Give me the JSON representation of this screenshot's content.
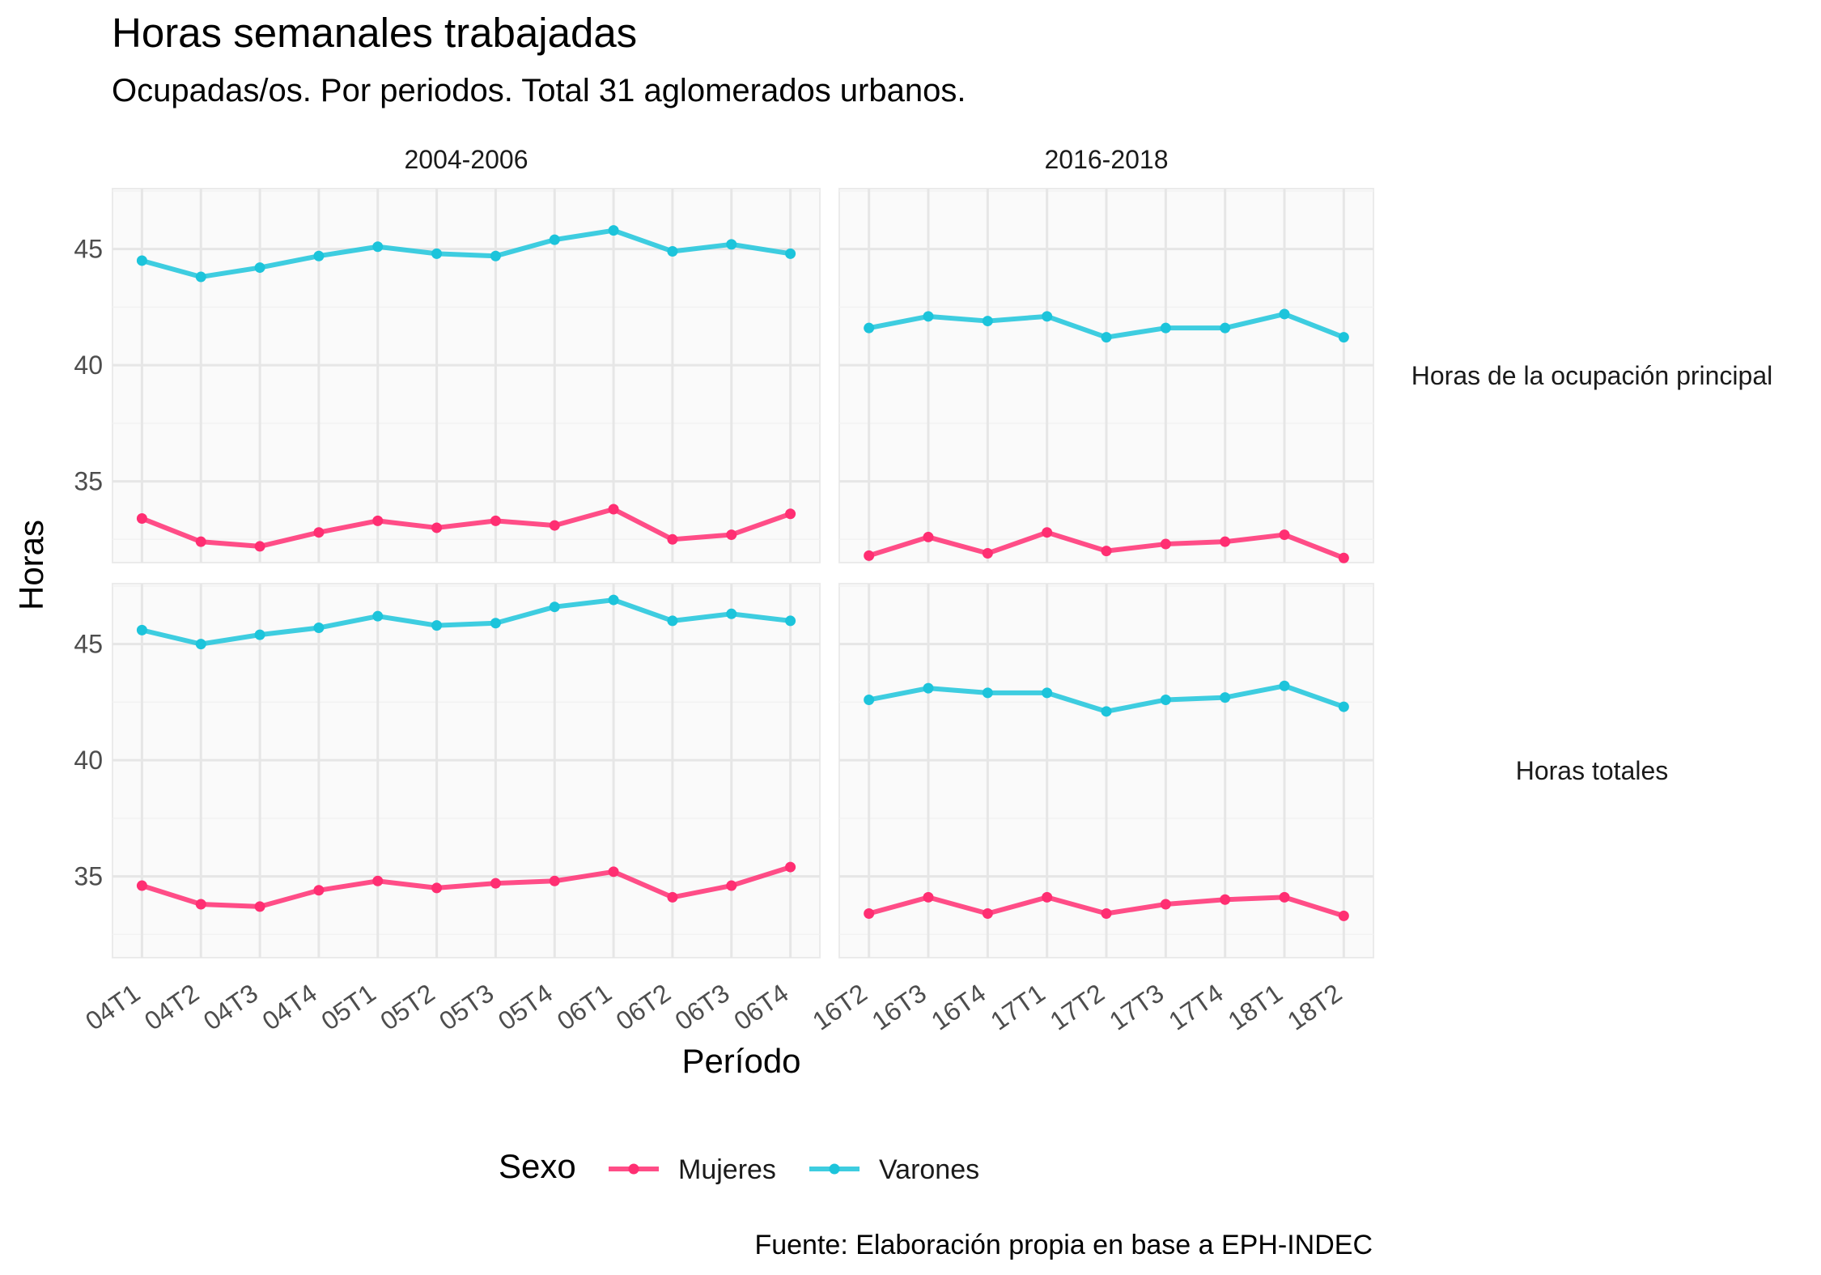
{
  "title": "Horas semanales trabajadas",
  "subtitle": "Ocupadas/os. Por periodos. Total 31 aglomerados urbanos.",
  "caption": "Fuente: Elaboración propia en base a EPH-INDEC",
  "legend": {
    "title": "Sexo",
    "items": [
      {
        "label": "Mujeres",
        "color": "#FF2E72"
      },
      {
        "label": "Varones",
        "color": "#1CC4DB"
      }
    ]
  },
  "chart_data": {
    "type": "line",
    "xlabel": "Período",
    "ylabel": "Horas",
    "ylim": [
      31.5,
      47.6
    ],
    "yticks": [
      35,
      40,
      45
    ],
    "grid": true,
    "legend_position": "bottom",
    "facet_columns": [
      "2004-2006",
      "2016-2018"
    ],
    "facet_rows": [
      "Horas de la ocupación principal",
      "Horas totales"
    ],
    "categories": {
      "2004-2006": [
        "04T1",
        "04T2",
        "04T3",
        "04T4",
        "05T1",
        "05T2",
        "05T3",
        "05T4",
        "06T1",
        "06T2",
        "06T3",
        "06T4"
      ],
      "2016-2018": [
        "16T2",
        "16T3",
        "16T4",
        "17T1",
        "17T2",
        "17T3",
        "17T4",
        "18T1",
        "18T2"
      ]
    },
    "panels": [
      {
        "row": "Horas de la ocupación principal",
        "col": "2004-2006",
        "series": [
          {
            "name": "Mujeres",
            "values": [
              33.4,
              32.4,
              32.2,
              32.8,
              33.3,
              33.0,
              33.3,
              33.1,
              33.8,
              32.5,
              32.7,
              33.6
            ]
          },
          {
            "name": "Varones",
            "values": [
              44.5,
              43.8,
              44.2,
              44.7,
              45.1,
              44.8,
              44.7,
              45.4,
              45.8,
              44.9,
              45.2,
              44.8
            ]
          }
        ]
      },
      {
        "row": "Horas de la ocupación principal",
        "col": "2016-2018",
        "series": [
          {
            "name": "Mujeres",
            "values": [
              31.8,
              32.6,
              31.9,
              32.8,
              32.0,
              32.3,
              32.4,
              32.7,
              31.7
            ]
          },
          {
            "name": "Varones",
            "values": [
              41.6,
              42.1,
              41.9,
              42.1,
              41.2,
              41.6,
              41.6,
              42.2,
              41.2
            ]
          }
        ]
      },
      {
        "row": "Horas totales",
        "col": "2004-2006",
        "series": [
          {
            "name": "Mujeres",
            "values": [
              34.6,
              33.8,
              33.7,
              34.4,
              34.8,
              34.5,
              34.7,
              34.8,
              35.2,
              34.1,
              34.6,
              35.4
            ]
          },
          {
            "name": "Varones",
            "values": [
              45.6,
              45.0,
              45.4,
              45.7,
              46.2,
              45.8,
              45.9,
              46.6,
              46.9,
              46.0,
              46.3,
              46.0
            ]
          }
        ]
      },
      {
        "row": "Horas totales",
        "col": "2016-2018",
        "series": [
          {
            "name": "Mujeres",
            "values": [
              33.4,
              34.1,
              33.4,
              34.1,
              33.4,
              33.8,
              34.0,
              34.1,
              33.3
            ]
          },
          {
            "name": "Varones",
            "values": [
              42.6,
              43.1,
              42.9,
              42.9,
              42.1,
              42.6,
              42.7,
              43.2,
              42.3
            ]
          }
        ]
      }
    ]
  }
}
